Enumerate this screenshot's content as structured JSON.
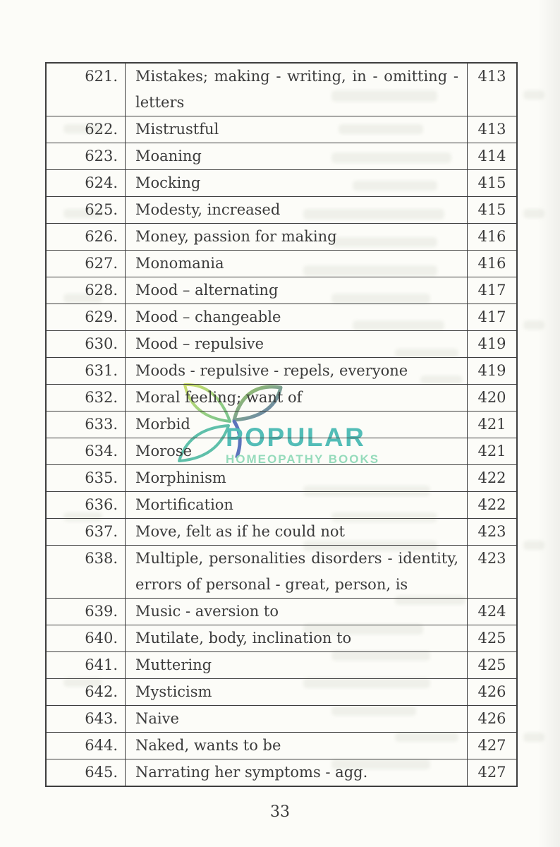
{
  "page": {
    "number": "33"
  },
  "watermark": {
    "line1": "POPULAR",
    "line2": "HOMEOPATHY BOOKS"
  },
  "colors": {
    "ink": "#3b3b3b",
    "border": "#3e3e3e",
    "paper": "#fcfcf8",
    "watermark_primary": "#2fb0a9",
    "watermark_secondary": "#7fd4ae",
    "leaf_green": "#8cc63f",
    "leaf_teal": "#3db39a",
    "leaf_blue": "#3a57b0"
  },
  "table": {
    "rows": [
      {
        "num": "621.",
        "topic": "Mistakes; making - writing, in - omitting - letters",
        "page": "413",
        "wrap": true
      },
      {
        "num": "622.",
        "topic": "Mistrustful",
        "page": "413"
      },
      {
        "num": "623.",
        "topic": "Moaning",
        "page": "414"
      },
      {
        "num": "624.",
        "topic": "Mocking",
        "page": "415"
      },
      {
        "num": "625.",
        "topic": "Modesty, increased",
        "page": "415"
      },
      {
        "num": "626.",
        "topic": "Money, passion for making",
        "page": "416"
      },
      {
        "num": "627.",
        "topic": "Monomania",
        "page": "416"
      },
      {
        "num": "628.",
        "topic": "Mood – alternating",
        "page": "417"
      },
      {
        "num": "629.",
        "topic": "Mood – changeable",
        "page": "417"
      },
      {
        "num": "630.",
        "topic": "Mood – repulsive",
        "page": "419"
      },
      {
        "num": "631.",
        "topic": "Moods - repulsive - repels, everyone",
        "page": "419"
      },
      {
        "num": "632.",
        "topic": "Moral feeling; want of",
        "page": "420"
      },
      {
        "num": "633.",
        "topic": "Morbid",
        "page": "421"
      },
      {
        "num": "634.",
        "topic": "Morose",
        "page": "421"
      },
      {
        "num": "635.",
        "topic": "Morphinism",
        "page": "422"
      },
      {
        "num": "636.",
        "topic": "Mortification",
        "page": "422"
      },
      {
        "num": "637.",
        "topic": "Move, felt as if he could not",
        "page": "423"
      },
      {
        "num": "638.",
        "topic": "Multiple, personalities disorders - identity, errors of personal - great, person, is",
        "page": "423",
        "wrap": true
      },
      {
        "num": "639.",
        "topic": "Music - aversion to",
        "page": "424"
      },
      {
        "num": "640.",
        "topic": "Mutilate, body, inclination to",
        "page": "425"
      },
      {
        "num": "641.",
        "topic": "Muttering",
        "page": "425"
      },
      {
        "num": "642.",
        "topic": "Mysticism",
        "page": "426"
      },
      {
        "num": "643.",
        "topic": "Naive",
        "page": "426"
      },
      {
        "num": "644.",
        "topic": "Naked, wants to be",
        "page": "427"
      },
      {
        "num": "645.",
        "topic": "Narrating her symptoms - agg.",
        "page": "427"
      }
    ]
  }
}
